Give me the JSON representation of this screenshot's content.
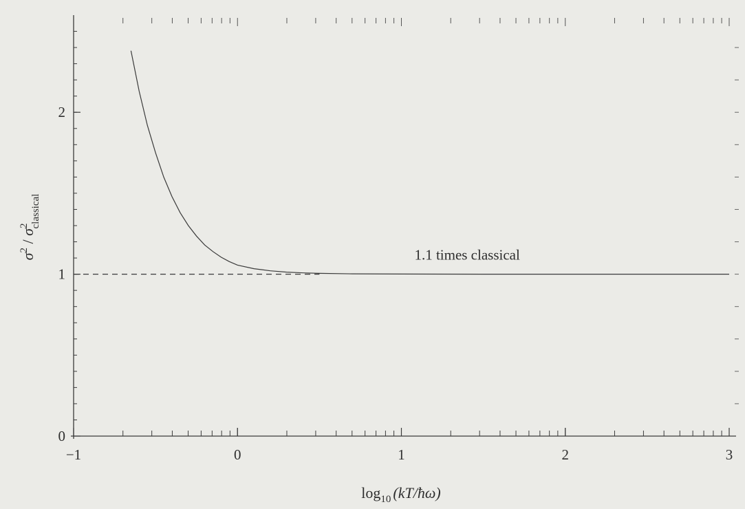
{
  "chart_data": {
    "type": "line",
    "title": "",
    "xlabel": "log10(kT/ħω)",
    "ylabel": "σ²/σ²classical",
    "xlim": [
      -1,
      3
    ],
    "ylim": [
      0,
      2.6
    ],
    "x_ticks": [
      -1,
      0,
      1,
      2,
      3
    ],
    "x_tick_labels": [
      "−1",
      "0",
      "1",
      "2",
      "3"
    ],
    "y_ticks": [
      0,
      1,
      2
    ],
    "y_tick_labels": [
      "0",
      "1",
      "2"
    ],
    "x_scale_top": "log",
    "grid": false,
    "legend": "none",
    "series": [
      {
        "style": "solid",
        "x": [
          -0.65,
          -0.6,
          -0.55,
          -0.5,
          -0.45,
          -0.4,
          -0.35,
          -0.3,
          -0.25,
          -0.2,
          -0.15,
          -0.1,
          -0.05,
          0,
          0.1,
          0.2,
          0.3,
          0.4,
          0.5,
          0.7,
          1.0,
          1.5,
          2.0,
          2.5,
          3.0
        ],
        "y": [
          2.38,
          2.13,
          1.92,
          1.75,
          1.6,
          1.48,
          1.38,
          1.3,
          1.235,
          1.18,
          1.14,
          1.105,
          1.078,
          1.056,
          1.034,
          1.021,
          1.013,
          1.008,
          1.005,
          1.002,
          1.001,
          1.0,
          1.0,
          1.0,
          1.0
        ]
      },
      {
        "style": "dashed",
        "x": [
          -1,
          0.5
        ],
        "y": [
          1,
          1
        ]
      }
    ],
    "annotations": [
      {
        "text": "1.1 times classical",
        "x": 1.6,
        "y": 1.09
      }
    ]
  }
}
